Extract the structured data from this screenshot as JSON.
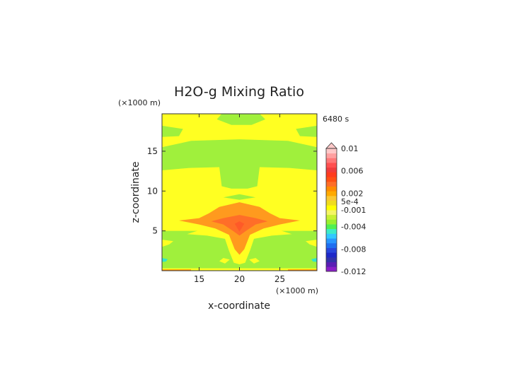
{
  "chart_data": {
    "type": "heatmap",
    "title": "H2O-g Mixing Ratio",
    "xlabel": "x-coordinate",
    "ylabel": "z-coordinate",
    "x_unit": "(×1000 m)",
    "y_unit": "(×1000 m)",
    "time_label": "6480 s",
    "xlim": [
      10.4,
      29.6
    ],
    "ylim": [
      0,
      19.7
    ],
    "xticks": [
      15,
      20,
      25
    ],
    "yticks": [
      5,
      10,
      15
    ],
    "colorbar": {
      "colors": [
        "#8a1ec8",
        "#5a1eb4",
        "#3232aa",
        "#1e28c8",
        "#2846dc",
        "#1e6ef0",
        "#2896ff",
        "#32c8ff",
        "#3cebc8",
        "#50f050",
        "#9af02d",
        "#c8f032",
        "#f5f564",
        "#ffff00",
        "#f0dc1e",
        "#fac832",
        "#ffaa00",
        "#ff8c00",
        "#ff6e28",
        "#ff5014",
        "#ff3c1e",
        "#f03c3c",
        "#ff5050",
        "#ff7878",
        "#ffa0a0",
        "#ffc8c8"
      ],
      "labels": [
        "0.01",
        "0.006",
        "0.002",
        "5e-4",
        "-0.001",
        "-0.004",
        "-0.008",
        "-0.012"
      ],
      "label_values": [
        0.01,
        0.006,
        0.002,
        0.0005,
        -0.001,
        -0.004,
        -0.008,
        -0.012
      ],
      "vmin": -0.012,
      "vmax": 0.01
    },
    "field": {
      "background": "#ffff22",
      "regions": [
        {
          "color": "#a0f03c",
          "kind": "rect",
          "x": [
            10.4,
            29.6
          ],
          "z": [
            0.3,
            5.0
          ]
        },
        {
          "color": "#a0f03c",
          "kind": "poly",
          "points": [
            [
              10.4,
              12.6
            ],
            [
              13.8,
              12.9
            ],
            [
              17.5,
              13.0
            ],
            [
              17.8,
              10.6
            ],
            [
              19.0,
              10.3
            ],
            [
              21.0,
              10.3
            ],
            [
              22.2,
              10.6
            ],
            [
              22.5,
              13.0
            ],
            [
              26.2,
              12.9
            ],
            [
              29.6,
              12.6
            ],
            [
              29.6,
              15.5
            ],
            [
              26.0,
              16.3
            ],
            [
              20.0,
              16.5
            ],
            [
              14.0,
              16.3
            ],
            [
              10.4,
              15.5
            ]
          ]
        },
        {
          "color": "#a0f03c",
          "kind": "poly",
          "points": [
            [
              10.4,
              16.8
            ],
            [
              12.5,
              16.9
            ],
            [
              13.0,
              17.8
            ],
            [
              10.4,
              18.2
            ]
          ]
        },
        {
          "color": "#a0f03c",
          "kind": "poly",
          "points": [
            [
              29.6,
              16.8
            ],
            [
              27.5,
              16.9
            ],
            [
              27.0,
              17.8
            ],
            [
              29.6,
              18.2
            ]
          ]
        },
        {
          "color": "#a0f03c",
          "kind": "poly",
          "points": [
            [
              17.2,
              19.0
            ],
            [
              19.0,
              18.3
            ],
            [
              21.5,
              18.3
            ],
            [
              23.2,
              19.0
            ],
            [
              22.5,
              19.7
            ],
            [
              17.8,
              19.7
            ]
          ]
        },
        {
          "color": "#a0f03c",
          "kind": "poly",
          "points": [
            [
              18.0,
              9.2
            ],
            [
              20.0,
              8.9
            ],
            [
              22.0,
              9.2
            ],
            [
              20.0,
              9.6
            ]
          ]
        },
        {
          "color": "#ffff22",
          "kind": "poly",
          "points": [
            [
              10.4,
              3.0
            ],
            [
              11.3,
              3.3
            ],
            [
              11.8,
              3.7
            ],
            [
              10.4,
              3.9
            ]
          ]
        },
        {
          "color": "#ffff22",
          "kind": "poly",
          "points": [
            [
              29.6,
              3.0
            ],
            [
              28.7,
              3.3
            ],
            [
              28.2,
              3.7
            ],
            [
              29.6,
              3.9
            ]
          ]
        },
        {
          "color": "#ffff22",
          "kind": "poly",
          "points": [
            [
              13.5,
              4.6
            ],
            [
              16.0,
              4.4
            ],
            [
              18.2,
              4.0
            ],
            [
              18.7,
              2.5
            ],
            [
              19.3,
              1.0
            ],
            [
              20.0,
              0.8
            ],
            [
              20.7,
              1.0
            ],
            [
              21.3,
              2.5
            ],
            [
              21.8,
              4.0
            ],
            [
              24.0,
              4.4
            ],
            [
              26.5,
              4.6
            ],
            [
              24.0,
              5.4
            ],
            [
              16.0,
              5.4
            ]
          ]
        },
        {
          "color": "#ffff22",
          "kind": "poly",
          "points": [
            [
              17.5,
              1.2
            ],
            [
              18.2,
              0.9
            ],
            [
              18.8,
              1.4
            ],
            [
              18.0,
              1.6
            ]
          ]
        },
        {
          "color": "#ffff22",
          "kind": "poly",
          "points": [
            [
              22.5,
              1.2
            ],
            [
              21.8,
              0.9
            ],
            [
              21.2,
              1.4
            ],
            [
              22.0,
              1.6
            ]
          ]
        },
        {
          "color": "#ff9a1e",
          "kind": "poly",
          "points": [
            [
              12.5,
              6.3
            ],
            [
              15.0,
              6.6
            ],
            [
              16.2,
              7.2
            ],
            [
              17.5,
              8.0
            ],
            [
              20.0,
              8.6
            ],
            [
              22.5,
              8.0
            ],
            [
              23.8,
              7.2
            ],
            [
              25.0,
              6.6
            ],
            [
              27.5,
              6.3
            ],
            [
              25.0,
              5.8
            ],
            [
              23.0,
              5.3
            ],
            [
              21.3,
              4.5
            ],
            [
              20.6,
              2.7
            ],
            [
              20.0,
              2.0
            ],
            [
              19.4,
              2.7
            ],
            [
              18.7,
              4.5
            ],
            [
              17.0,
              5.3
            ],
            [
              15.0,
              5.8
            ]
          ]
        },
        {
          "color": "#ff6e28",
          "kind": "poly",
          "points": [
            [
              16.5,
              6.2
            ],
            [
              18.0,
              6.6
            ],
            [
              20.0,
              7.0
            ],
            [
              22.0,
              6.6
            ],
            [
              23.5,
              6.2
            ],
            [
              22.0,
              5.8
            ],
            [
              20.8,
              5.0
            ],
            [
              20.0,
              4.4
            ],
            [
              19.2,
              5.0
            ],
            [
              18.0,
              5.8
            ]
          ]
        },
        {
          "color": "#ff5a28",
          "kind": "poly",
          "points": [
            [
              19.4,
              5.9
            ],
            [
              20.0,
              6.2
            ],
            [
              20.6,
              5.9
            ],
            [
              20.0,
              4.9
            ]
          ]
        },
        {
          "color": "#32e6c8",
          "kind": "poly",
          "points": [
            [
              10.4,
              1.1
            ],
            [
              10.9,
              1.15
            ],
            [
              11.1,
              1.45
            ],
            [
              10.4,
              1.6
            ]
          ]
        },
        {
          "color": "#32e6c8",
          "kind": "poly",
          "points": [
            [
              29.6,
              1.1
            ],
            [
              29.1,
              1.15
            ],
            [
              28.9,
              1.45
            ],
            [
              29.6,
              1.6
            ]
          ]
        },
        {
          "color": "#ff8c00",
          "kind": "rect",
          "x": [
            10.4,
            14.0
          ],
          "z": [
            0.0,
            0.15
          ]
        },
        {
          "color": "#ff8c00",
          "kind": "rect",
          "x": [
            26.0,
            29.6
          ],
          "z": [
            0.0,
            0.15
          ]
        },
        {
          "color": "#ffff22",
          "kind": "rect",
          "x": [
            14.0,
            26.0
          ],
          "z": [
            0.0,
            0.25
          ]
        }
      ]
    }
  }
}
